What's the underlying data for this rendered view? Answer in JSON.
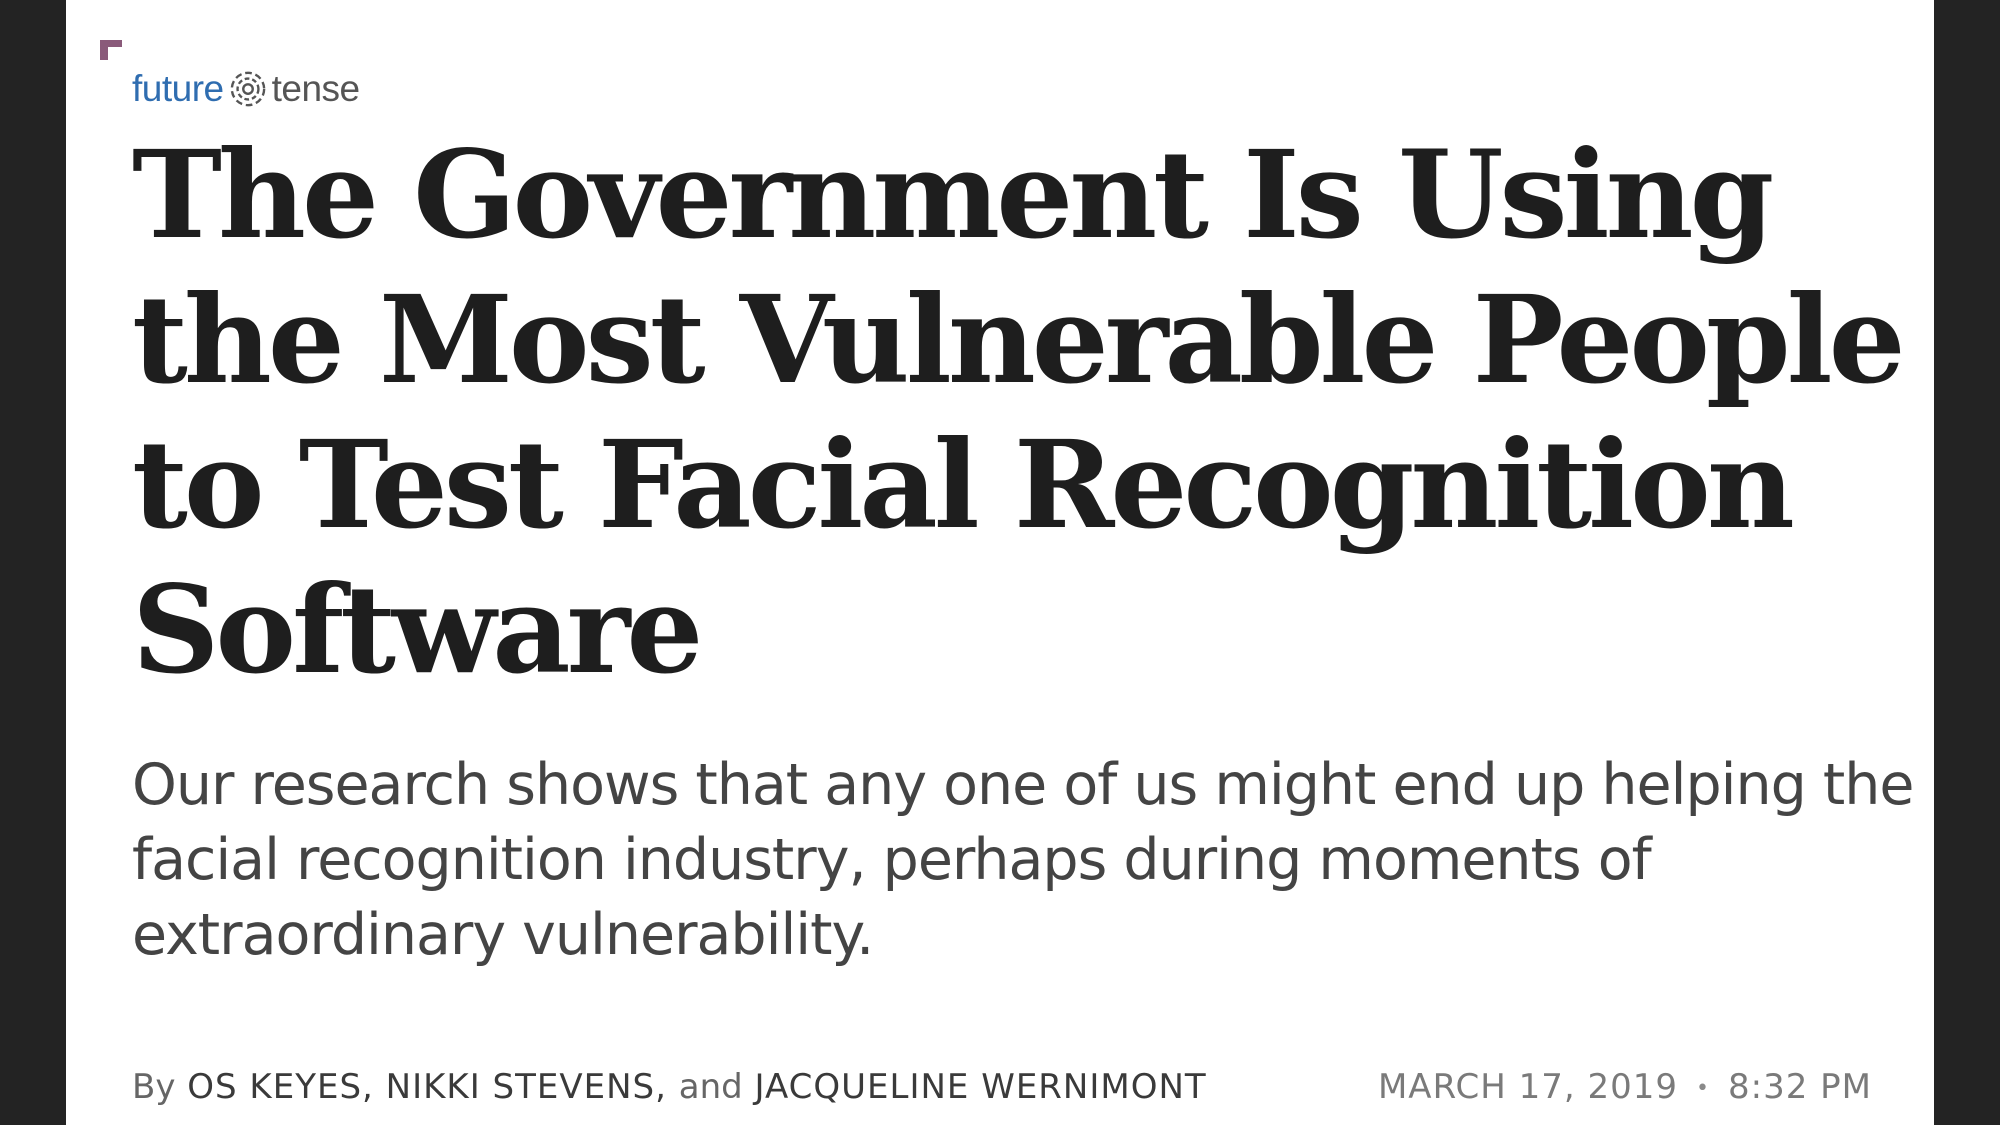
{
  "brand": {
    "part1": "future",
    "part2": "tense",
    "icon": "target-rings-icon"
  },
  "article": {
    "headline": "The Government Is Using the Most Vulnerable People to Test Facial Recognition Software",
    "dek": "Our research shows that any one of us might end up helping the facial recognition industry, perhaps during moments of extraordinary vulnerability.",
    "byline": {
      "prefix": "By",
      "authors": [
        "OS KEYES,",
        "NIKKI STEVENS,",
        "JACQUELINE WERNIMONT"
      ],
      "conjunction": "and"
    },
    "date": "MARCH 17, 2019",
    "separator": "•",
    "time": "8:32 PM"
  },
  "colors": {
    "background": "#232323",
    "page": "#ffffff",
    "brand_blue": "#2f6db0",
    "headline": "#1e1e1e",
    "corner_mark": "#8a5a7a"
  }
}
